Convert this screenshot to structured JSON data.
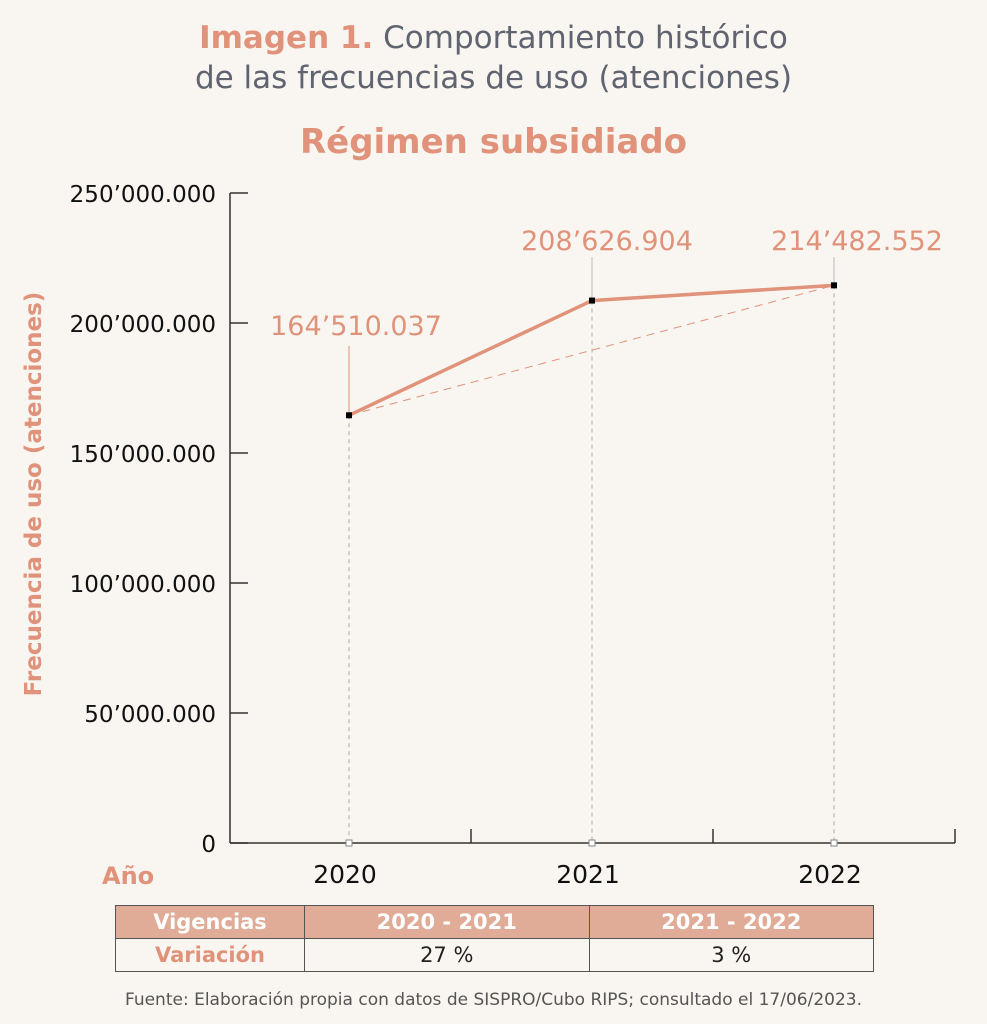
{
  "header": {
    "title_bold": "Imagen 1.",
    "title_rest": "Comportamiento histórico",
    "title_line2": "de las frecuencias de uso (atenciones)",
    "subtitle": "Régimen subsidiado"
  },
  "chart_data": {
    "type": "line",
    "title": "Régimen subsidiado",
    "xlabel": "Año",
    "ylabel": "Frecuencia de uso (atenciones)",
    "categories": [
      "2020",
      "2021",
      "2022"
    ],
    "values": [
      164510037,
      208626904,
      214482552
    ],
    "data_labels": [
      "164’510.037",
      "208’626.904",
      "214’482.552"
    ],
    "ylim": [
      0,
      250000000
    ],
    "yticks": [
      0,
      50000000,
      100000000,
      150000000,
      200000000,
      250000000
    ],
    "ytick_labels": [
      "0",
      "50’000.000",
      "100’000.000",
      "150’000.000",
      "200’000.000",
      "250’000.000"
    ],
    "trendline": "dashed line from 2020 to 2022",
    "line_color": "#e0937a"
  },
  "table": {
    "header": [
      "Vigencias",
      "2020 - 2021",
      "2021 - 2022"
    ],
    "row": [
      "Variación",
      "27 %",
      "3 %"
    ]
  },
  "source": "Fuente: Elaboración propia con datos de SISPRO/Cubo RIPS; consultado el 17/06/2023."
}
